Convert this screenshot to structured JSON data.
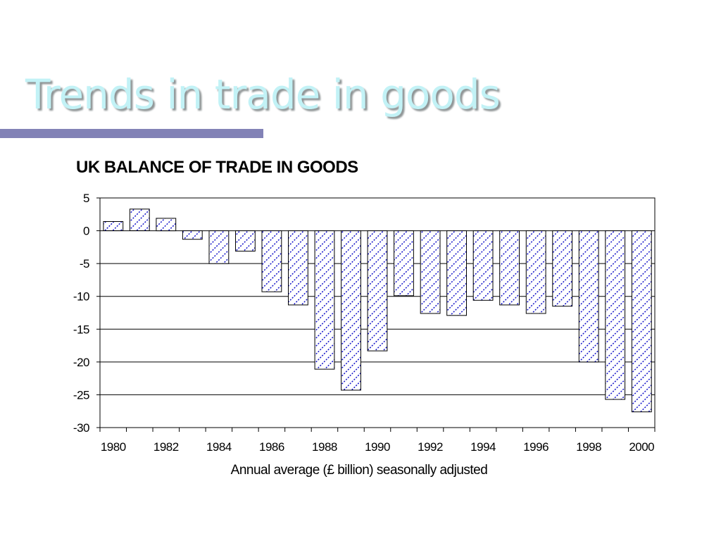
{
  "slide": {
    "title": "Trends in trade in goods"
  },
  "colors": {
    "title_text": "#c2f2f6",
    "title_bar": "#8282b6",
    "bar_pattern": "#1010c8",
    "bar_outline": "#000000"
  },
  "chart_data": {
    "type": "bar",
    "title": "UK BALANCE OF TRADE IN GOODS",
    "xlabel": "Annual average (£ billion) seasonally adjusted",
    "ylabel": "",
    "ylim": [
      -30,
      5
    ],
    "yticks": [
      5,
      0,
      -5,
      -10,
      -15,
      -20,
      -25,
      -30
    ],
    "grid": true,
    "legend": "none",
    "fill": "diagonal hatch",
    "categories": [
      "1980",
      "1981",
      "1982",
      "1983",
      "1984",
      "1985",
      "1986",
      "1987",
      "1988",
      "1989",
      "1990",
      "1991",
      "1992",
      "1993",
      "1994",
      "1995",
      "1996",
      "1997",
      "1998",
      "1999",
      "2000"
    ],
    "xtick_labels": [
      "1980",
      "1982",
      "1984",
      "1986",
      "1988",
      "1990",
      "1992",
      "1994",
      "1996",
      "1998",
      "2000"
    ],
    "values": [
      1.4,
      3.3,
      1.9,
      -1.3,
      -5.0,
      -3.1,
      -9.3,
      -11.3,
      -21.1,
      -24.3,
      -18.3,
      -9.9,
      -12.6,
      -12.9,
      -10.6,
      -11.3,
      -12.6,
      -11.5,
      -20.0,
      -25.7,
      -27.6
    ]
  }
}
